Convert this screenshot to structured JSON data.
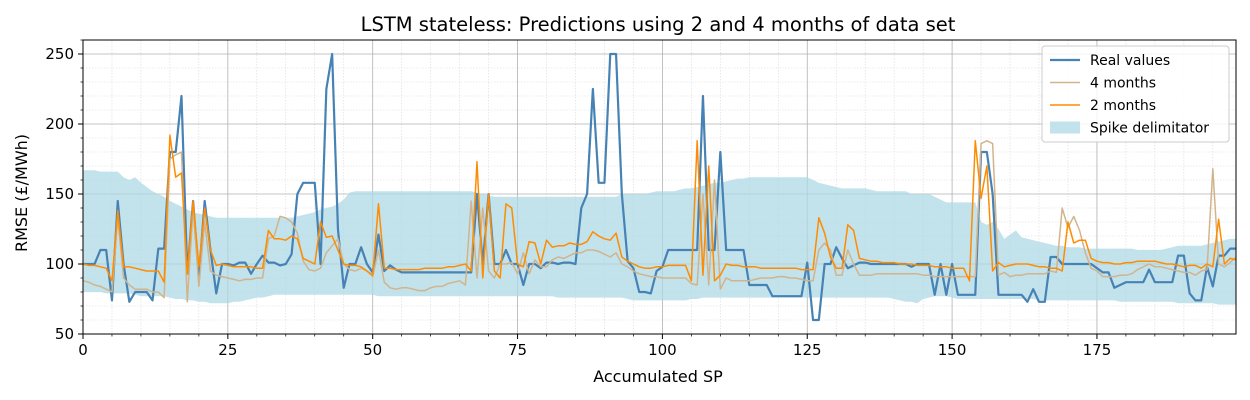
{
  "chart_data": {
    "type": "line",
    "title": "LSTM stateless: Predictions using 2 and 4 months of data set",
    "xlabel": "Accumulated SP",
    "ylabel": "RMSE (£/MWh)",
    "xlim": [
      0,
      199
    ],
    "ylim": [
      50,
      260
    ],
    "xticks": [
      0,
      25,
      50,
      75,
      100,
      125,
      150,
      175
    ],
    "yticks": [
      50,
      100,
      150,
      200,
      250
    ],
    "grid": "major and minor",
    "legend_position": "top-right",
    "series": [
      {
        "name": "Real values",
        "color": "#4682b4",
        "values": [
          100,
          100,
          100,
          110,
          110,
          74,
          145,
          100,
          73,
          80,
          80,
          80,
          74,
          111,
          111,
          180,
          180,
          220,
          93,
          145,
          90,
          145,
          110,
          79,
          100,
          100,
          99,
          101,
          101,
          93,
          100,
          106,
          101,
          101,
          99,
          100,
          107,
          150,
          158,
          158,
          158,
          100,
          225,
          250,
          125,
          83,
          100,
          100,
          112,
          100,
          94,
          121,
          95,
          99,
          96,
          94,
          94,
          94,
          94,
          94,
          94,
          94,
          94,
          94,
          94,
          94,
          94,
          94,
          150,
          100,
          150,
          100,
          100,
          110,
          100,
          100,
          85,
          100,
          100,
          97,
          101,
          101,
          100,
          101,
          101,
          100,
          140,
          150,
          225,
          158,
          158,
          250,
          250,
          150,
          102,
          97,
          80,
          80,
          79,
          95,
          98,
          110,
          110,
          110,
          110,
          110,
          110,
          220,
          110,
          110,
          180,
          110,
          110,
          110,
          110,
          85,
          85,
          85,
          85,
          77,
          77,
          77,
          77,
          77,
          77,
          101,
          60,
          60,
          100,
          100,
          112,
          104,
          97,
          99,
          101,
          101,
          100,
          100,
          100,
          100,
          100,
          100,
          100,
          98,
          100,
          100,
          100,
          78,
          100,
          78,
          100,
          78,
          78,
          78,
          78,
          180,
          180,
          150,
          78,
          78,
          78,
          78,
          78,
          73,
          82,
          73,
          73,
          105,
          105,
          100,
          100,
          100,
          100,
          100,
          100,
          97,
          94,
          94,
          83,
          85,
          87,
          87,
          87,
          87,
          96,
          87,
          87,
          87,
          87,
          106,
          106,
          79,
          74,
          74,
          98,
          84,
          106,
          106,
          111,
          111,
          111
        ]
      },
      {
        "name": "4 months",
        "color": "#d2b48c",
        "values": [
          88,
          87,
          85,
          84,
          82,
          80,
          133,
          90,
          85,
          82,
          82,
          82,
          80,
          80,
          76,
          175,
          178,
          180,
          73,
          140,
          84,
          130,
          95,
          92,
          91,
          90,
          89,
          88,
          89,
          89,
          90,
          90,
          118,
          120,
          134,
          133,
          130,
          122,
          102,
          96,
          95,
          97,
          108,
          113,
          118,
          100,
          96,
          95,
          97,
          95,
          91,
          110,
          87,
          83,
          82,
          83,
          83,
          82,
          81,
          81,
          83,
          84,
          84,
          86,
          87,
          88,
          85,
          145,
          90,
          140,
          95,
          90,
          100,
          100,
          101,
          93,
          108,
          93,
          103,
          98,
          98,
          103,
          105,
          104,
          106,
          108,
          108,
          110,
          110,
          109,
          107,
          105,
          108,
          100,
          98,
          95,
          93,
          92,
          91,
          91,
          90,
          90,
          90,
          90,
          90,
          86,
          85,
          150,
          85,
          160,
          82,
          90,
          88,
          88,
          88,
          88,
          89,
          90,
          90,
          90,
          91,
          91,
          90,
          90,
          89,
          88,
          88,
          110,
          115,
          110,
          92,
          92,
          110,
          100,
          92,
          92,
          92,
          93,
          93,
          93,
          93,
          93,
          93,
          93,
          93,
          92,
          92,
          91,
          91,
          91,
          91,
          91,
          91,
          91,
          91,
          186,
          188,
          186,
          92,
          94,
          91,
          92,
          92,
          93,
          93,
          93,
          93,
          95,
          94,
          140,
          126,
          134,
          124,
          108,
          97,
          95,
          91,
          91,
          91,
          92,
          92,
          93,
          96,
          98,
          100,
          98,
          98,
          97,
          96,
          95,
          94,
          94,
          92,
          95,
          96,
          168,
          100,
          98,
          101,
          105,
          106
        ]
      },
      {
        "name": "2 months",
        "color": "#ff8c00",
        "values": [
          100,
          99,
          99,
          98,
          97,
          88,
          138,
          98,
          98,
          97,
          96,
          95,
          95,
          95,
          87,
          192,
          162,
          165,
          93,
          145,
          98,
          140,
          110,
          99,
          100,
          99,
          98,
          98,
          98,
          98,
          97,
          97,
          124,
          118,
          118,
          117,
          120,
          118,
          104,
          102,
          100,
          130,
          119,
          120,
          110,
          100,
          99,
          99,
          98,
          95,
          92,
          143,
          97,
          97,
          96,
          96,
          96,
          96,
          96,
          97,
          97,
          97,
          97,
          98,
          98,
          99,
          100,
          95,
          173,
          90,
          150,
          95,
          90,
          143,
          140,
          100,
          98,
          116,
          115,
          100,
          117,
          112,
          113,
          113,
          115,
          114,
          114,
          116,
          123,
          120,
          118,
          117,
          122,
          105,
          102,
          100,
          98,
          97,
          97,
          98,
          98,
          99,
          99,
          99,
          99,
          88,
          188,
          92,
          170,
          88,
          92,
          100,
          99,
          99,
          98,
          98,
          98,
          97,
          97,
          97,
          97,
          97,
          97,
          97,
          96,
          96,
          96,
          133,
          122,
          105,
          97,
          97,
          128,
          124,
          104,
          103,
          102,
          102,
          101,
          101,
          101,
          100,
          100,
          100,
          99,
          99,
          99,
          98,
          98,
          98,
          97,
          97,
          97,
          88,
          188,
          147,
          170,
          95,
          101,
          98,
          99,
          100,
          100,
          100,
          99,
          98,
          98,
          97,
          97,
          95,
          130,
          115,
          117,
          117,
          104,
          102,
          101,
          101,
          100,
          100,
          101,
          101,
          102,
          102,
          102,
          102,
          101,
          100,
          100,
          99,
          98,
          99,
          99,
          97,
          100,
          98,
          132,
          100,
          104,
          103,
          103
        ]
      },
      {
        "name": "Spike delimitator",
        "color": "#add8e6",
        "type": "area",
        "upper": [
          167,
          167,
          167,
          166,
          166,
          166,
          166,
          162,
          160,
          162,
          158,
          155,
          152,
          150,
          148,
          145,
          143,
          141,
          139,
          137,
          136,
          135,
          134,
          133,
          133,
          133,
          133,
          133,
          133,
          133,
          133,
          133,
          133,
          133,
          133,
          133,
          133,
          134,
          135,
          136,
          137,
          139,
          140,
          141,
          143,
          146,
          151,
          152,
          152,
          152,
          152,
          152,
          152,
          152,
          152,
          152,
          152,
          152,
          152,
          152,
          152,
          152,
          152,
          152,
          152,
          152,
          152,
          152,
          151,
          150,
          149,
          148,
          148,
          148,
          148,
          148,
          148,
          148,
          148,
          148,
          148,
          148,
          148,
          148,
          148,
          148,
          148,
          148,
          148,
          148,
          148,
          148,
          148,
          150,
          150,
          150,
          150,
          150,
          151,
          152,
          152,
          152,
          152,
          153,
          154,
          154,
          155,
          156,
          157,
          158,
          158,
          159,
          160,
          161,
          161,
          162,
          162,
          162,
          162,
          162,
          162,
          162,
          162,
          162,
          162,
          162,
          160,
          158,
          157,
          156,
          155,
          154,
          154,
          154,
          154,
          154,
          153,
          152,
          152,
          152,
          152,
          152,
          152,
          150,
          150,
          150,
          150,
          148,
          146,
          144,
          144,
          144,
          144,
          144,
          144,
          130,
          128,
          130,
          125,
          118,
          121,
          124,
          119,
          118,
          117,
          116,
          115,
          114,
          113,
          113,
          112,
          112,
          112,
          111,
          111,
          111,
          111,
          111,
          111,
          111,
          111,
          111,
          110,
          110,
          110,
          110,
          110,
          111,
          112,
          113,
          113,
          113,
          113,
          113,
          114,
          115,
          116,
          117,
          118,
          118,
          118
        ],
        "lower": [
          80,
          80,
          80,
          80,
          79,
          79,
          79,
          79,
          79,
          78,
          77,
          77,
          77,
          77,
          77,
          76,
          75,
          75,
          74,
          74,
          73,
          73,
          72,
          72,
          72,
          72,
          73,
          73,
          74,
          75,
          76,
          76,
          77,
          78,
          78,
          78,
          78,
          78,
          78,
          78,
          78,
          78,
          78,
          78,
          78,
          78,
          78,
          78,
          78,
          78,
          78,
          77,
          77,
          77,
          77,
          77,
          77,
          77,
          77,
          77,
          77,
          77,
          77,
          77,
          77,
          77,
          77,
          77,
          77,
          77,
          77,
          77,
          77,
          77,
          77,
          77,
          77,
          77,
          77,
          77,
          77,
          77,
          76,
          76,
          76,
          76,
          76,
          76,
          76,
          76,
          76,
          76,
          76,
          76,
          75,
          74,
          74,
          74,
          74,
          74,
          74,
          74,
          74,
          74,
          74,
          75,
          75,
          76,
          76,
          76,
          76,
          76,
          76,
          76,
          76,
          76,
          76,
          76,
          76,
          76,
          76,
          76,
          76,
          76,
          76,
          76,
          76,
          76,
          76,
          76,
          76,
          76,
          76,
          76,
          76,
          76,
          76,
          76,
          76,
          76,
          75,
          74,
          73,
          73,
          72,
          75,
          76,
          77,
          77,
          77,
          76,
          75,
          75,
          75,
          75,
          75,
          75,
          75,
          75,
          75,
          75,
          75,
          75,
          75,
          75,
          74,
          74,
          74,
          74,
          74,
          74,
          74,
          74,
          74,
          74,
          74,
          74,
          74,
          74,
          73,
          73,
          73,
          73,
          73,
          73,
          73,
          73,
          73,
          73,
          72,
          72,
          72,
          72,
          72,
          72,
          72,
          71,
          71,
          71,
          71,
          71
        ]
      }
    ]
  }
}
